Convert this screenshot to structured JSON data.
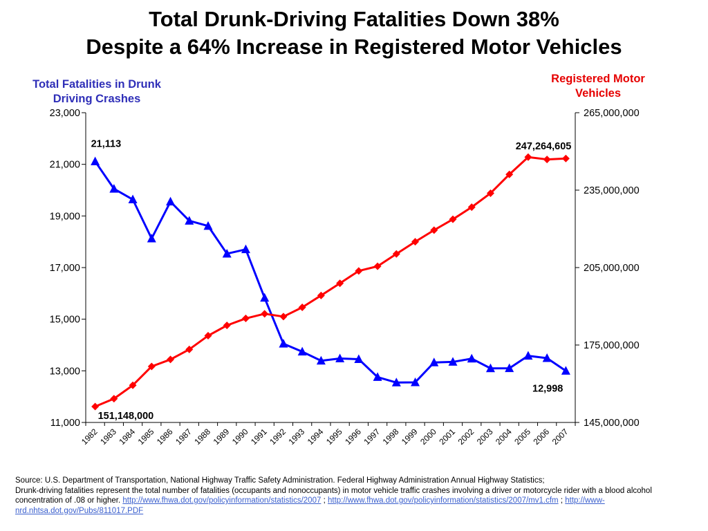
{
  "title_line1": "Total Drunk-Driving Fatalities Down 38%",
  "title_line2": "Despite a 64% Increase in Registered Motor Vehicles",
  "left_axis_title": "Total Fatalities in Drunk Driving Crashes",
  "right_axis_title": "Registered Motor Vehicles",
  "source": {
    "line1": "Source: U.S. Department of Transportation, National Highway Traffic Safety Administration.  Federal Highway Administration Annual Highway Statistics;",
    "line2": "Drunk-driving fatalities represent the total number of fatalities (occupants and nonoccupants) in motor vehicle traffic crashes involving a driver or motorcycle rider with a blood alcohol concentration of .08 or higher.",
    "link1": "http://www.fhwa.dot.gov/policyinformation/statistics/2007",
    "sep1": ";",
    "link2": "http://www.fhwa.dot.gov/policyinformation/statistics/2007/mv1.cfm",
    "sep2": ";",
    "link3": "http://www-nrd.nhtsa.dot.gov/Pubs/811017.PDF"
  },
  "chart_data": {
    "type": "line",
    "x": [
      "1982",
      "1983",
      "1984",
      "1985",
      "1986",
      "1987",
      "1988",
      "1989",
      "1990",
      "1991",
      "1992",
      "1993",
      "1994",
      "1995",
      "1996",
      "1997",
      "1998",
      "1999",
      "2000",
      "2001",
      "2002",
      "2003",
      "2004",
      "2005",
      "2006",
      "2007"
    ],
    "left_axis": {
      "ylim": [
        11000,
        23000
      ],
      "ticks": [
        "11,000",
        "13,000",
        "15,000",
        "17,000",
        "19,000",
        "21,000",
        "23,000"
      ]
    },
    "right_axis": {
      "ylim": [
        145000000,
        265000000
      ],
      "ticks": [
        "145,000,000",
        "175,000,000",
        "205,000,000",
        "235,000,000",
        "265,000,000"
      ]
    },
    "series": [
      {
        "name": "Total Fatalities in Drunk Driving Crashes",
        "axis": "left",
        "color": "#0000ff",
        "marker": "triangle",
        "values": [
          21113,
          20051,
          19638,
          18125,
          19554,
          18813,
          18611,
          17537,
          17705,
          15827,
          14049,
          13741,
          13390,
          13478,
          13451,
          12757,
          12546,
          12555,
          13324,
          13346,
          13472,
          13096,
          13099,
          13582,
          13491,
          12998
        ]
      },
      {
        "name": "Registered Motor Vehicles",
        "axis": "right",
        "color": "#ff0000",
        "marker": "diamond",
        "values": [
          151148000,
          154200000,
          159400000,
          166700000,
          169400000,
          173300000,
          178600000,
          182600000,
          185300000,
          187100000,
          186000000,
          189600000,
          194200000,
          198900000,
          203700000,
          205500000,
          210300000,
          215000000,
          219500000,
          223700000,
          228400000,
          233800000,
          241100000,
          247800000,
          246900000,
          247264605
        ]
      }
    ],
    "annotations": [
      {
        "series": 0,
        "index": 0,
        "text": "21,113"
      },
      {
        "series": 0,
        "index": 25,
        "text": "12,998"
      },
      {
        "series": 1,
        "index": 0,
        "text": "151,148,000"
      },
      {
        "series": 1,
        "index": 25,
        "text": "247,264,605"
      }
    ]
  }
}
